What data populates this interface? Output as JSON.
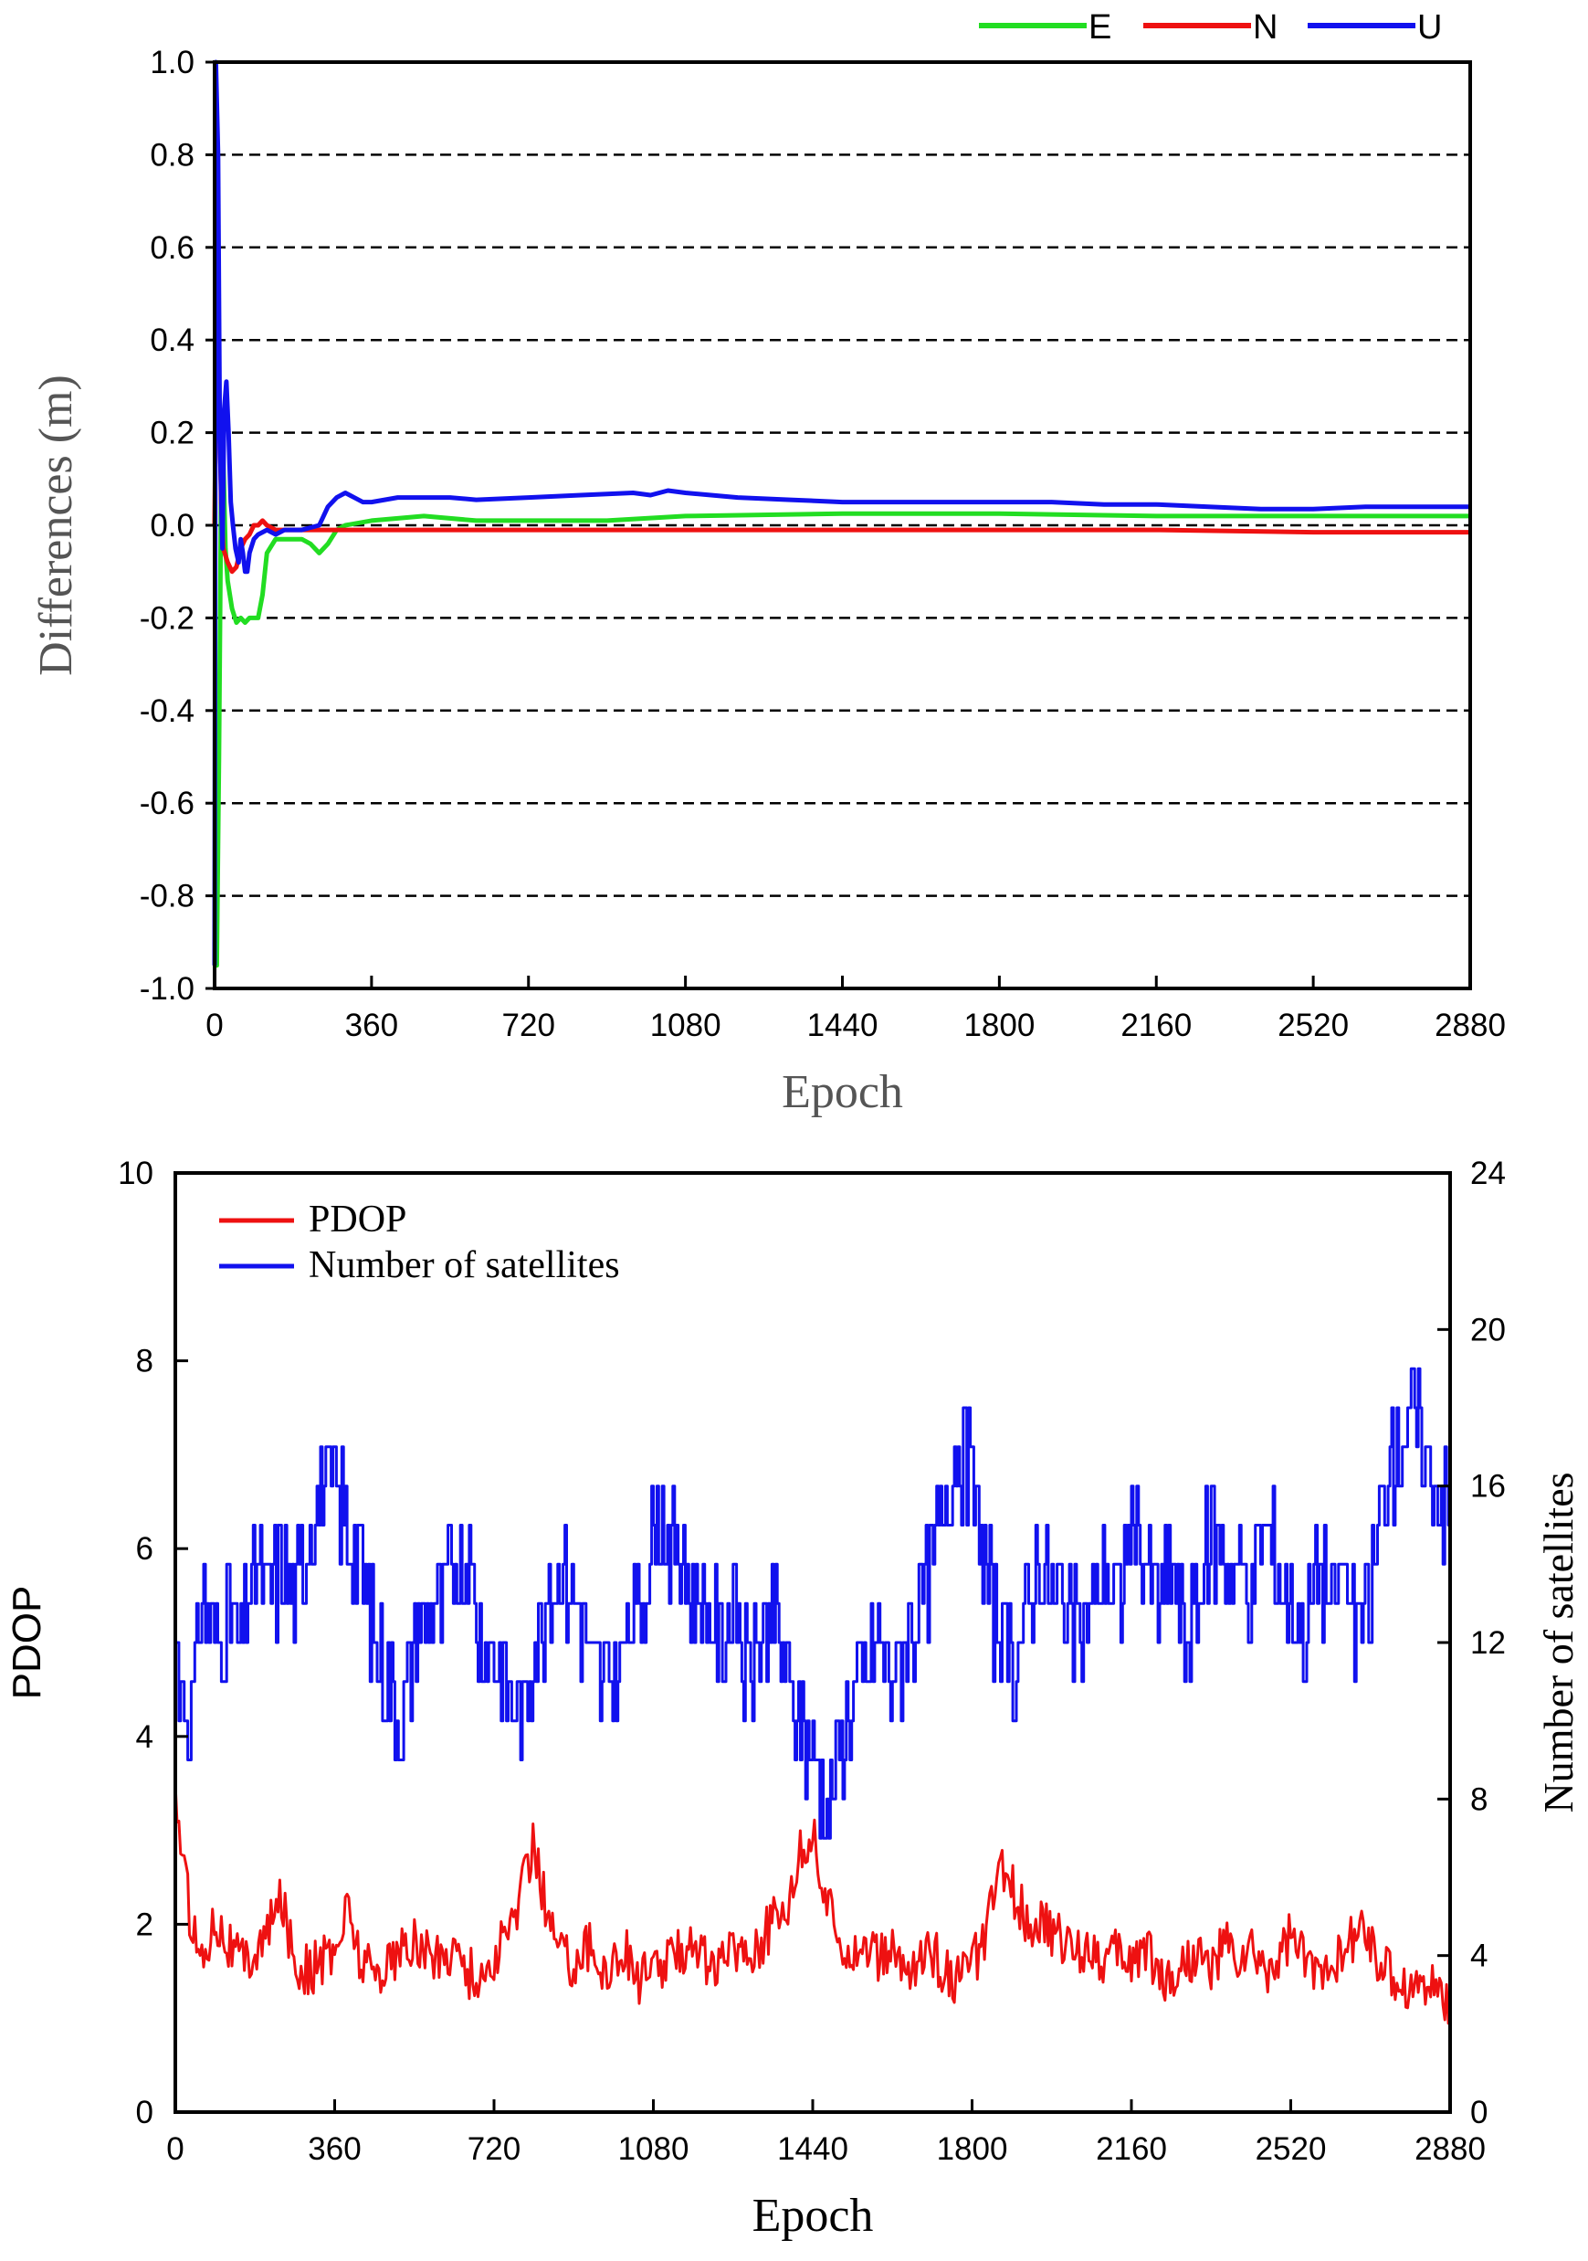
{
  "chart_data": [
    {
      "type": "line",
      "panel": "top",
      "title": "",
      "xlabel": "Epoch",
      "ylabel": "Differences (m)",
      "xlim": [
        0,
        2880
      ],
      "ylim": [
        -1.0,
        1.0
      ],
      "xticks": [
        0,
        360,
        720,
        1080,
        1440,
        1800,
        2160,
        2520,
        2880
      ],
      "yticks": [
        -1.0,
        -0.8,
        -0.6,
        -0.4,
        -0.2,
        0.0,
        0.2,
        0.4,
        0.6,
        0.8,
        1.0
      ],
      "ytick_labels": [
        "-1.0",
        "-0.8",
        "-0.6",
        "-0.4",
        "-0.2",
        "0.0",
        "0.2",
        "0.4",
        "0.6",
        "0.8",
        "1.0"
      ],
      "grid": "horizontal dashed",
      "legend_position": "top-right, above plot",
      "series": [
        {
          "name": "E",
          "color": "#22dd22",
          "points": [
            [
              0,
              -0.9
            ],
            [
              5,
              -0.95
            ],
            [
              10,
              -0.5
            ],
            [
              15,
              0.1
            ],
            [
              20,
              0.15
            ],
            [
              25,
              -0.05
            ],
            [
              30,
              -0.12
            ],
            [
              40,
              -0.18
            ],
            [
              50,
              -0.21
            ],
            [
              60,
              -0.2
            ],
            [
              70,
              -0.21
            ],
            [
              80,
              -0.2
            ],
            [
              90,
              -0.2
            ],
            [
              100,
              -0.2
            ],
            [
              110,
              -0.15
            ],
            [
              120,
              -0.06
            ],
            [
              140,
              -0.03
            ],
            [
              160,
              -0.03
            ],
            [
              200,
              -0.03
            ],
            [
              220,
              -0.04
            ],
            [
              240,
              -0.06
            ],
            [
              260,
              -0.04
            ],
            [
              280,
              -0.01
            ],
            [
              300,
              0.0
            ],
            [
              360,
              0.01
            ],
            [
              480,
              0.02
            ],
            [
              600,
              0.01
            ],
            [
              720,
              0.01
            ],
            [
              900,
              0.01
            ],
            [
              1080,
              0.02
            ],
            [
              1440,
              0.025
            ],
            [
              1800,
              0.025
            ],
            [
              2160,
              0.02
            ],
            [
              2520,
              0.02
            ],
            [
              2880,
              0.02
            ]
          ]
        },
        {
          "name": "N",
          "color": "#ee1111",
          "points": [
            [
              0,
              0.0
            ],
            [
              5,
              0.5
            ],
            [
              10,
              0.3
            ],
            [
              15,
              0.05
            ],
            [
              20,
              -0.05
            ],
            [
              30,
              -0.08
            ],
            [
              40,
              -0.1
            ],
            [
              50,
              -0.09
            ],
            [
              60,
              -0.05
            ],
            [
              70,
              -0.03
            ],
            [
              80,
              -0.02
            ],
            [
              90,
              0.0
            ],
            [
              100,
              0.0
            ],
            [
              110,
              0.01
            ],
            [
              120,
              0.0
            ],
            [
              140,
              -0.01
            ],
            [
              160,
              -0.01
            ],
            [
              200,
              -0.01
            ],
            [
              360,
              -0.01
            ],
            [
              720,
              -0.01
            ],
            [
              1080,
              -0.01
            ],
            [
              1440,
              -0.01
            ],
            [
              1800,
              -0.01
            ],
            [
              2160,
              -0.01
            ],
            [
              2520,
              -0.015
            ],
            [
              2880,
              -0.015
            ]
          ]
        },
        {
          "name": "U",
          "color": "#1111ee",
          "points": [
            [
              0,
              -0.95
            ],
            [
              3,
              1.0
            ],
            [
              8,
              0.8
            ],
            [
              12,
              0.2
            ],
            [
              18,
              -0.05
            ],
            [
              22,
              0.25
            ],
            [
              27,
              0.31
            ],
            [
              32,
              0.2
            ],
            [
              37,
              0.05
            ],
            [
              42,
              0.0
            ],
            [
              48,
              -0.05
            ],
            [
              55,
              -0.08
            ],
            [
              60,
              -0.03
            ],
            [
              65,
              -0.06
            ],
            [
              70,
              -0.1
            ],
            [
              75,
              -0.1
            ],
            [
              80,
              -0.06
            ],
            [
              90,
              -0.03
            ],
            [
              100,
              -0.02
            ],
            [
              120,
              -0.01
            ],
            [
              140,
              -0.02
            ],
            [
              160,
              -0.01
            ],
            [
              200,
              -0.01
            ],
            [
              240,
              0.0
            ],
            [
              260,
              0.04
            ],
            [
              280,
              0.06
            ],
            [
              300,
              0.07
            ],
            [
              320,
              0.06
            ],
            [
              340,
              0.05
            ],
            [
              360,
              0.05
            ],
            [
              420,
              0.06
            ],
            [
              480,
              0.06
            ],
            [
              540,
              0.06
            ],
            [
              600,
              0.055
            ],
            [
              720,
              0.06
            ],
            [
              840,
              0.065
            ],
            [
              960,
              0.07
            ],
            [
              1000,
              0.065
            ],
            [
              1040,
              0.075
            ],
            [
              1080,
              0.07
            ],
            [
              1200,
              0.06
            ],
            [
              1320,
              0.055
            ],
            [
              1440,
              0.05
            ],
            [
              1560,
              0.05
            ],
            [
              1680,
              0.05
            ],
            [
              1800,
              0.05
            ],
            [
              1920,
              0.05
            ],
            [
              2040,
              0.045
            ],
            [
              2160,
              0.045
            ],
            [
              2280,
              0.04
            ],
            [
              2400,
              0.035
            ],
            [
              2520,
              0.035
            ],
            [
              2640,
              0.04
            ],
            [
              2760,
              0.04
            ],
            [
              2880,
              0.04
            ]
          ]
        }
      ]
    },
    {
      "type": "line",
      "panel": "bottom",
      "title": "",
      "xlabel": "Epoch",
      "ylabel": "PDOP",
      "y2label": "Number of satellites",
      "xlim": [
        0,
        2880
      ],
      "ylim": [
        0,
        10
      ],
      "y2lim": [
        0,
        24
      ],
      "xticks": [
        0,
        360,
        720,
        1080,
        1440,
        1800,
        2160,
        2520,
        2880
      ],
      "yticks": [
        0,
        2,
        4,
        6,
        8,
        10
      ],
      "y2ticks": [
        0,
        4,
        8,
        12,
        16,
        20,
        24
      ],
      "grid": "off",
      "legend_position": "top-left",
      "series": [
        {
          "name": "PDOP",
          "color": "#ee1111",
          "axis": "left",
          "x": [
            0,
            30,
            60,
            90,
            120,
            150,
            180,
            210,
            240,
            270,
            300,
            330,
            360,
            390,
            420,
            450,
            480,
            510,
            540,
            570,
            600,
            630,
            660,
            690,
            720,
            750,
            780,
            810,
            840,
            870,
            900,
            930,
            960,
            990,
            1020,
            1050,
            1080,
            1110,
            1140,
            1170,
            1200,
            1230,
            1260,
            1290,
            1320,
            1350,
            1380,
            1410,
            1440,
            1470,
            1500,
            1530,
            1560,
            1590,
            1620,
            1650,
            1680,
            1710,
            1740,
            1770,
            1800,
            1830,
            1860,
            1890,
            1920,
            1950,
            1980,
            2010,
            2040,
            2070,
            2100,
            2130,
            2160,
            2190,
            2220,
            2250,
            2280,
            2310,
            2340,
            2370,
            2400,
            2430,
            2460,
            2490,
            2520,
            2550,
            2580,
            2610,
            2640,
            2670,
            2700,
            2730,
            2760,
            2790,
            2820,
            2850,
            2880
          ],
          "values": [
            3.4,
            2.2,
            1.6,
            2.1,
            1.8,
            1.6,
            1.7,
            1.9,
            2.3,
            1.6,
            1.5,
            1.6,
            1.7,
            2.2,
            1.6,
            1.5,
            1.6,
            1.7,
            1.8,
            1.7,
            1.6,
            1.8,
            1.5,
            1.4,
            1.6,
            1.9,
            2.3,
            2.9,
            2.1,
            1.7,
            1.6,
            1.8,
            1.5,
            1.6,
            1.7,
            1.4,
            1.5,
            1.6,
            1.7,
            1.9,
            1.6,
            1.5,
            1.8,
            1.7,
            1.8,
            2.0,
            2.2,
            2.7,
            3.0,
            2.2,
            1.9,
            1.7,
            1.8,
            1.6,
            1.7,
            1.5,
            1.6,
            1.7,
            1.5,
            1.4,
            1.6,
            1.8,
            2.6,
            2.4,
            2.1,
            2.0,
            1.9,
            1.8,
            1.7,
            1.8,
            1.6,
            1.7,
            1.6,
            1.8,
            1.5,
            1.4,
            1.6,
            1.7,
            1.5,
            1.8,
            1.6,
            1.7,
            1.5,
            1.6,
            1.9,
            1.6,
            1.5,
            1.7,
            1.6,
            2.0,
            1.8,
            1.5,
            1.4,
            1.3,
            1.4,
            1.3,
            1.2
          ]
        },
        {
          "name": "Number of satellites",
          "color": "#1111ee",
          "axis": "right",
          "x": [
            0,
            30,
            60,
            90,
            120,
            150,
            180,
            210,
            240,
            270,
            300,
            330,
            360,
            390,
            420,
            450,
            480,
            510,
            540,
            570,
            600,
            630,
            660,
            690,
            720,
            750,
            780,
            810,
            840,
            870,
            900,
            930,
            960,
            990,
            1020,
            1050,
            1080,
            1110,
            1140,
            1170,
            1200,
            1230,
            1260,
            1290,
            1320,
            1350,
            1380,
            1410,
            1440,
            1470,
            1500,
            1530,
            1560,
            1590,
            1620,
            1650,
            1680,
            1710,
            1740,
            1770,
            1800,
            1830,
            1860,
            1890,
            1920,
            1950,
            1980,
            2010,
            2040,
            2070,
            2100,
            2130,
            2160,
            2190,
            2220,
            2250,
            2280,
            2310,
            2340,
            2370,
            2400,
            2430,
            2460,
            2490,
            2520,
            2550,
            2580,
            2610,
            2640,
            2670,
            2700,
            2730,
            2760,
            2790,
            2820,
            2850,
            2880
          ],
          "values": [
            12,
            10,
            13,
            12,
            13,
            12,
            14,
            13,
            14,
            13,
            15,
            16,
            16,
            15,
            14,
            12,
            11,
            10,
            12,
            13,
            13,
            14,
            14,
            12,
            12,
            11,
            10,
            12,
            13,
            14,
            13,
            12,
            11,
            11,
            12,
            13,
            15,
            15,
            14,
            13,
            13,
            12,
            13,
            11,
            12,
            13,
            11,
            10,
            9,
            8,
            9,
            11,
            11,
            12,
            11,
            12,
            13,
            14,
            16,
            17,
            16,
            14,
            12,
            11,
            13,
            14,
            13,
            13,
            12,
            13,
            14,
            13,
            15,
            14,
            13,
            14,
            12,
            13,
            15,
            14,
            14,
            13,
            15,
            14,
            13,
            12,
            14,
            13,
            14,
            12,
            13,
            16,
            17,
            18,
            17,
            16,
            15
          ]
        }
      ]
    }
  ]
}
